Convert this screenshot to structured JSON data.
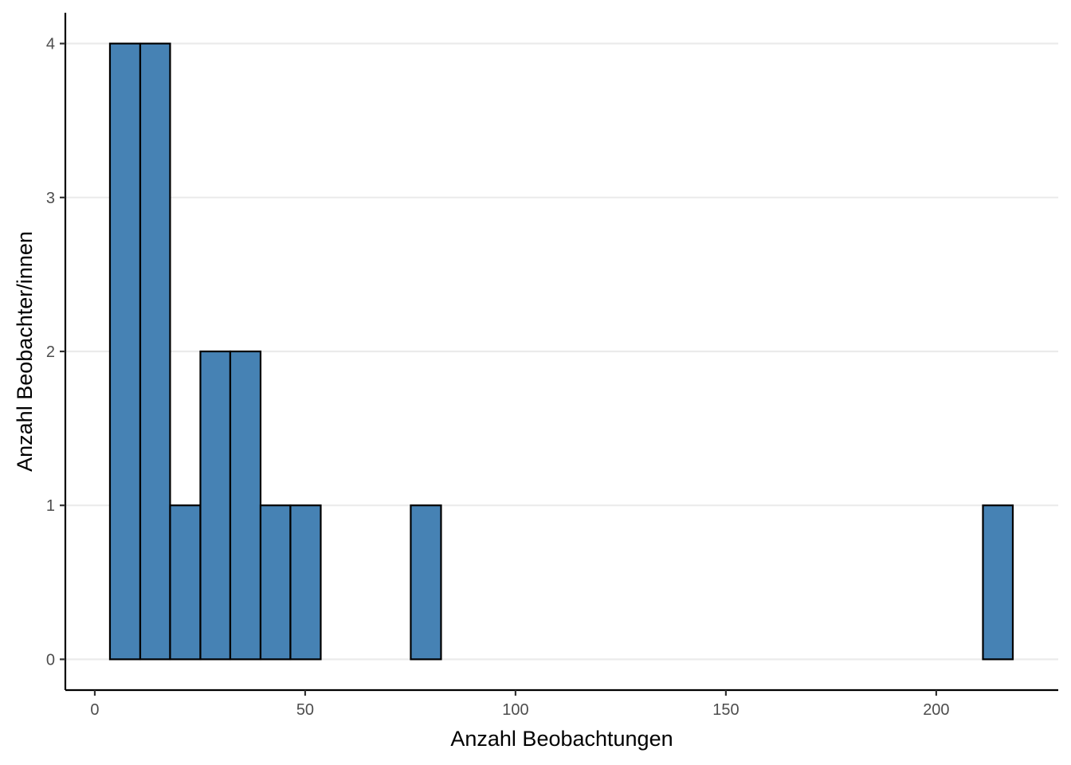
{
  "chart_data": {
    "type": "bar",
    "xlabel": "Anzahl Beobachtungen",
    "ylabel": "Anzahl Beobachter/innen",
    "xlim": [
      -7,
      229
    ],
    "ylim": [
      -0.2,
      4.2
    ],
    "x_ticks": [
      0,
      50,
      100,
      150,
      200
    ],
    "y_ticks": [
      0,
      1,
      2,
      3,
      4
    ],
    "grid": "horizontal-major",
    "bar_fill": "#4682B4",
    "bar_outline": "#000000",
    "bins": [
      {
        "x0": 3.6,
        "x1": 10.8,
        "count": 4
      },
      {
        "x0": 10.8,
        "x1": 17.9,
        "count": 4
      },
      {
        "x0": 17.9,
        "x1": 25.1,
        "count": 1
      },
      {
        "x0": 25.1,
        "x1": 32.2,
        "count": 2
      },
      {
        "x0": 32.2,
        "x1": 39.4,
        "count": 2
      },
      {
        "x0": 39.4,
        "x1": 46.5,
        "count": 1
      },
      {
        "x0": 46.5,
        "x1": 53.7,
        "count": 1
      },
      {
        "x0": 53.7,
        "x1": 60.8,
        "count": 0
      },
      {
        "x0": 60.8,
        "x1": 68.0,
        "count": 0
      },
      {
        "x0": 68.0,
        "x1": 75.1,
        "count": 0
      },
      {
        "x0": 75.1,
        "x1": 82.3,
        "count": 1
      },
      {
        "x0": 82.3,
        "x1": 89.5,
        "count": 0
      },
      {
        "x0": 89.5,
        "x1": 96.6,
        "count": 0
      },
      {
        "x0": 96.6,
        "x1": 103.8,
        "count": 0
      },
      {
        "x0": 103.8,
        "x1": 110.9,
        "count": 0
      },
      {
        "x0": 110.9,
        "x1": 118.1,
        "count": 0
      },
      {
        "x0": 118.1,
        "x1": 125.2,
        "count": 0
      },
      {
        "x0": 125.2,
        "x1": 132.4,
        "count": 0
      },
      {
        "x0": 132.4,
        "x1": 139.5,
        "count": 0
      },
      {
        "x0": 139.5,
        "x1": 146.7,
        "count": 0
      },
      {
        "x0": 146.7,
        "x1": 153.8,
        "count": 0
      },
      {
        "x0": 153.8,
        "x1": 161.0,
        "count": 0
      },
      {
        "x0": 161.0,
        "x1": 168.1,
        "count": 0
      },
      {
        "x0": 168.1,
        "x1": 175.3,
        "count": 0
      },
      {
        "x0": 175.3,
        "x1": 182.4,
        "count": 0
      },
      {
        "x0": 182.4,
        "x1": 189.6,
        "count": 0
      },
      {
        "x0": 189.6,
        "x1": 196.8,
        "count": 0
      },
      {
        "x0": 196.8,
        "x1": 203.9,
        "count": 0
      },
      {
        "x0": 203.9,
        "x1": 211.1,
        "count": 0
      },
      {
        "x0": 211.1,
        "x1": 218.2,
        "count": 1
      }
    ]
  }
}
